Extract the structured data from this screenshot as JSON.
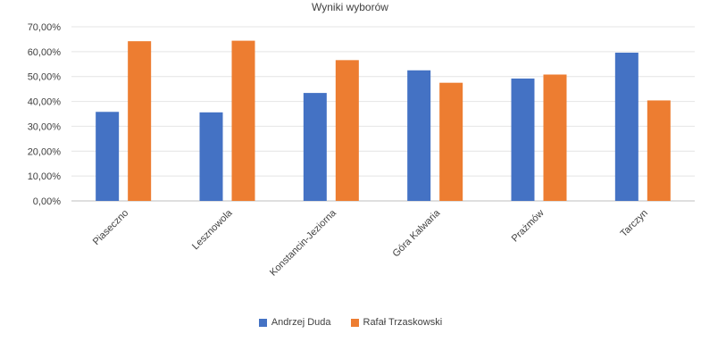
{
  "chart_data": {
    "type": "bar",
    "title": "Wyniki wyborów",
    "categories": [
      "Piaseczno",
      "Lesznowola",
      "Konstancin-Jeziorna",
      "Góra Kalwaria",
      "Prażmów",
      "Tarczyn"
    ],
    "series": [
      {
        "name": "Andrzej Duda",
        "color": "#4472C4",
        "values": [
          35.8,
          35.6,
          43.4,
          52.5,
          49.2,
          59.6
        ]
      },
      {
        "name": "Rafał Trzaskowski",
        "color": "#ED7D31",
        "values": [
          64.2,
          64.4,
          56.6,
          47.5,
          50.8,
          40.4
        ]
      }
    ],
    "y_ticks": [
      "0,00%",
      "10,00%",
      "20,00%",
      "30,00%",
      "40,00%",
      "50,00%",
      "60,00%",
      "70,00%"
    ],
    "ylim": [
      0,
      70
    ],
    "grid": true,
    "legend_position": "bottom"
  }
}
